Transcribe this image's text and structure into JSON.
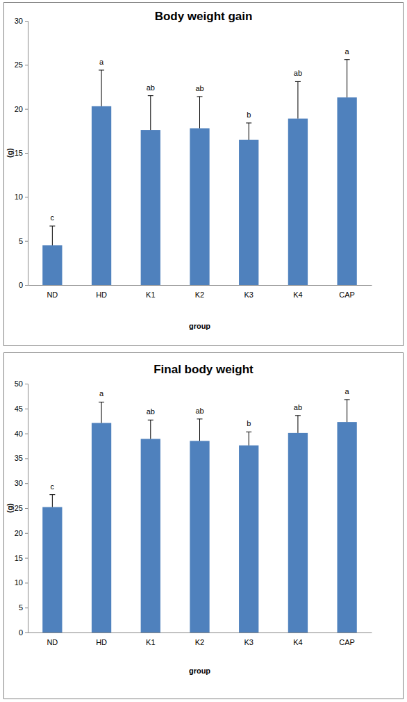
{
  "chart_data": [
    {
      "type": "bar",
      "title": "Body weight gain",
      "x_label": "group",
      "y_label": "(g)",
      "categories": [
        "ND",
        "HD",
        "K1",
        "K2",
        "K3",
        "K4",
        "CAP"
      ],
      "values": [
        4.5,
        20.3,
        17.6,
        17.8,
        16.5,
        18.9,
        21.3
      ],
      "errors": [
        2.2,
        4.1,
        3.9,
        3.6,
        1.9,
        4.2,
        4.3
      ],
      "letters": [
        "c",
        "a",
        "ab",
        "ab",
        "b",
        "ab",
        "a"
      ],
      "color": "#4f81bd",
      "ylim": [
        0,
        30
      ],
      "yticks": [
        0,
        5,
        10,
        15,
        20,
        25,
        30
      ]
    },
    {
      "type": "bar",
      "title": "Final body weight",
      "x_label": "group",
      "y_label": "(g)",
      "categories": [
        "ND",
        "HD",
        "K1",
        "K2",
        "K3",
        "K4",
        "CAP"
      ],
      "values": [
        25.2,
        42.1,
        38.9,
        38.5,
        37.6,
        40.1,
        42.3
      ],
      "errors": [
        2.5,
        4.2,
        3.8,
        4.4,
        2.7,
        3.5,
        4.5
      ],
      "letters": [
        "c",
        "a",
        "ab",
        "ab",
        "b",
        "ab",
        "a"
      ],
      "color": "#4f81bd",
      "ylim": [
        0,
        50
      ],
      "yticks": [
        0,
        5,
        10,
        15,
        20,
        25,
        30,
        35,
        40,
        45,
        50
      ]
    }
  ]
}
